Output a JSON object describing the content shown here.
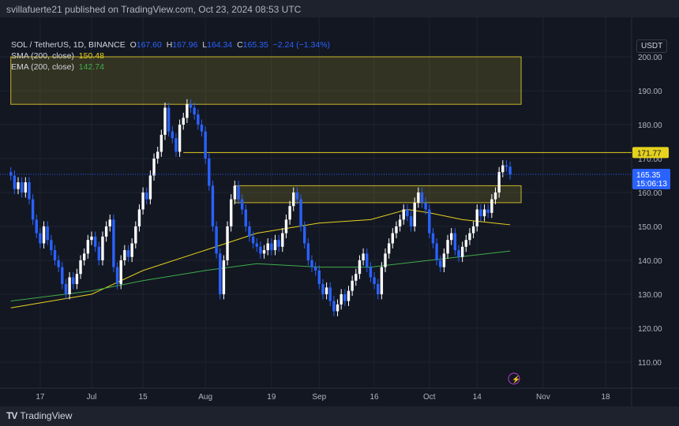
{
  "header": {
    "published": "svillafuerte21 published on TradingView.com, Oct 23, 2024 08:53 UTC"
  },
  "legend": {
    "symbol": "SOL / TetherUS, 1D, BINANCE",
    "o_label": "O",
    "o": "167.60",
    "h_label": "H",
    "h": "167.96",
    "l_label": "L",
    "l": "164.34",
    "c_label": "C",
    "c": "165.35",
    "change": "−2.24 (−1.34%)",
    "sma_label": "SMA (200, close)",
    "sma_value": "150.48",
    "ema_label": "EMA (200, close)",
    "ema_value": "142.74"
  },
  "currency": "USDT",
  "colors": {
    "up": "#ffffff",
    "down": "#2962ff",
    "sma": "#e6d21e",
    "ema": "#3fae49",
    "zone": "#c9b52a",
    "bg": "#131722"
  },
  "chart_data": {
    "type": "candlestick",
    "first_date": "2024-06-09",
    "closes": [
      165,
      161,
      163,
      160,
      163,
      158,
      152,
      148,
      145,
      150,
      146,
      143,
      140,
      138,
      133,
      130,
      135,
      133,
      136,
      140,
      142,
      146,
      147,
      144,
      140,
      147,
      150,
      152,
      138,
      133,
      140,
      143,
      141,
      145,
      150,
      155,
      160,
      158,
      165,
      170,
      172,
      177,
      185,
      178,
      176,
      172,
      180,
      182,
      186,
      185,
      183,
      180,
      178,
      170,
      162,
      150,
      142,
      130,
      140,
      150,
      158,
      162,
      158,
      155,
      150,
      147,
      145,
      144,
      142,
      143,
      145,
      143,
      146,
      144,
      148,
      152,
      156,
      160,
      158,
      150,
      145,
      140,
      138,
      137,
      133,
      130,
      132,
      128,
      125,
      127,
      130,
      128,
      131,
      134,
      136,
      140,
      142,
      138,
      135,
      133,
      130,
      138,
      142,
      145,
      148,
      150,
      152,
      155,
      153,
      150,
      157,
      160,
      157,
      155,
      148,
      145,
      140,
      138,
      142,
      146,
      148,
      143,
      141,
      144,
      146,
      148,
      150,
      155,
      153,
      155,
      154,
      158,
      160,
      166,
      168,
      167.6,
      165.35
    ],
    "sma": [
      [
        "2024-06-09",
        126
      ],
      [
        "2024-07-01",
        130
      ],
      [
        "2024-07-15",
        137
      ],
      [
        "2024-08-01",
        143
      ],
      [
        "2024-08-15",
        148
      ],
      [
        "2024-09-01",
        151
      ],
      [
        "2024-09-15",
        152
      ],
      [
        "2024-09-25",
        155
      ],
      [
        "2024-10-01",
        154
      ],
      [
        "2024-10-10",
        152
      ],
      [
        "2024-10-23",
        150.48
      ]
    ],
    "ema": [
      [
        "2024-06-09",
        128
      ],
      [
        "2024-07-01",
        131
      ],
      [
        "2024-07-15",
        134
      ],
      [
        "2024-08-01",
        137
      ],
      [
        "2024-08-15",
        139
      ],
      [
        "2024-09-01",
        138
      ],
      [
        "2024-09-15",
        138
      ],
      [
        "2024-10-01",
        140
      ],
      [
        "2024-10-23",
        142.74
      ]
    ],
    "zones": [
      {
        "from": "2024-06-09",
        "to": "2024-10-26",
        "low": 186,
        "high": 200
      },
      {
        "from": "2024-08-09",
        "to": "2024-10-26",
        "low": 157,
        "high": 162
      }
    ],
    "resistance": {
      "from": "2024-07-26",
      "value": 171.77,
      "label": "171.77"
    },
    "last_price": {
      "label": "165.35",
      "countdown": "15:06:13"
    },
    "ylim": [
      110,
      200
    ],
    "yticks": [
      "200.00",
      "190.00",
      "180.00",
      "170.00",
      "160.00",
      "150.00",
      "140.00",
      "130.00",
      "120.00",
      "110.00"
    ],
    "xticks": [
      [
        "2024-06-17",
        "17"
      ],
      [
        "2024-07-01",
        "Jul"
      ],
      [
        "2024-07-15",
        "15"
      ],
      [
        "2024-08-01",
        "Aug"
      ],
      [
        "2024-08-19",
        "19"
      ],
      [
        "2024-09-01",
        "Sep"
      ],
      [
        "2024-09-16",
        "16"
      ],
      [
        "2024-10-01",
        "Oct"
      ],
      [
        "2024-10-14",
        "14"
      ],
      [
        "2024-11-01",
        "Nov"
      ],
      [
        "2024-11-18",
        "18"
      ]
    ]
  },
  "footer": {
    "brand": "TradingView"
  }
}
